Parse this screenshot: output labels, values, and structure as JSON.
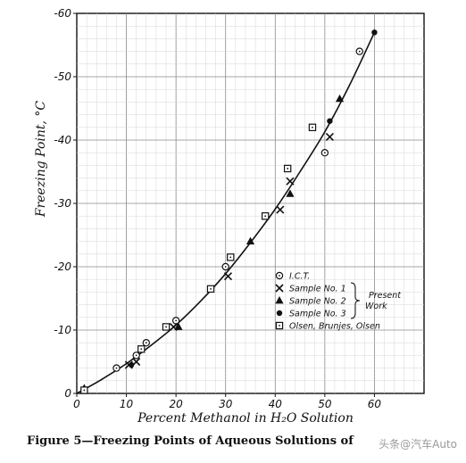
{
  "chart_data": {
    "type": "scatter",
    "title": "",
    "xlabel": "Percent Methanol in H₂O Solution",
    "ylabel": "Freezing Point, °C",
    "xlim": [
      0,
      70
    ],
    "ylim": [
      0,
      -60
    ],
    "x_ticks": [
      0,
      10,
      20,
      30,
      40,
      50,
      60
    ],
    "x_tick_labels": [
      "0",
      "10",
      "20",
      "30",
      "40",
      "50",
      "60"
    ],
    "y_ticks": [
      0,
      -10,
      -20,
      -30,
      -40,
      -50,
      -60
    ],
    "y_tick_labels": [
      "0",
      "-10",
      "-20",
      "-30",
      "-40",
      "-50",
      "-60"
    ],
    "legend_position": "lower-right",
    "legend_group_label": "Present Work",
    "series": [
      {
        "name": "I.C.T.",
        "marker": "circle-dot",
        "x": [
          1.5,
          8,
          12,
          14,
          20,
          30,
          50,
          57
        ],
        "y": [
          -0.5,
          -4,
          -6,
          -8,
          -11.5,
          -20,
          -38,
          -54
        ]
      },
      {
        "name": "Sample No. 1",
        "marker": "x",
        "x": [
          10.5,
          12,
          19.5,
          30.5,
          41,
          43,
          51
        ],
        "y": [
          -4.5,
          -5,
          -10.5,
          -18.5,
          -29,
          -33.5,
          -40.5
        ]
      },
      {
        "name": "Sample No. 2",
        "marker": "triangle",
        "x": [
          1.5,
          20.5,
          35,
          43,
          53
        ],
        "y": [
          -0.8,
          -10.5,
          -24,
          -31.5,
          -46.5
        ]
      },
      {
        "name": "Sample No. 3",
        "marker": "filled-circle",
        "x": [
          1.5,
          11,
          51,
          60
        ],
        "y": [
          -0.5,
          -4.5,
          -43,
          -57
        ]
      },
      {
        "name": "Olsen, Brunjes, Olsen",
        "marker": "square-dot",
        "x": [
          1.5,
          13,
          18,
          31,
          27,
          38,
          42.5,
          47.5
        ],
        "y": [
          -0.5,
          -7,
          -10.5,
          -21.5,
          -16.5,
          -28,
          -35.5,
          -42
        ]
      }
    ],
    "fit_curve": {
      "x": [
        0,
        5,
        10,
        15,
        20,
        25,
        30,
        35,
        40,
        45,
        50,
        55,
        60
      ],
      "y": [
        0,
        -2.2,
        -4.7,
        -7.6,
        -10.8,
        -14.6,
        -18.9,
        -23.8,
        -29.1,
        -35,
        -41.3,
        -48.7,
        -57
      ]
    }
  },
  "caption": "Figure 5—Freezing Points of Aqueous Solutions of",
  "watermark": "头条@汽车Auto"
}
